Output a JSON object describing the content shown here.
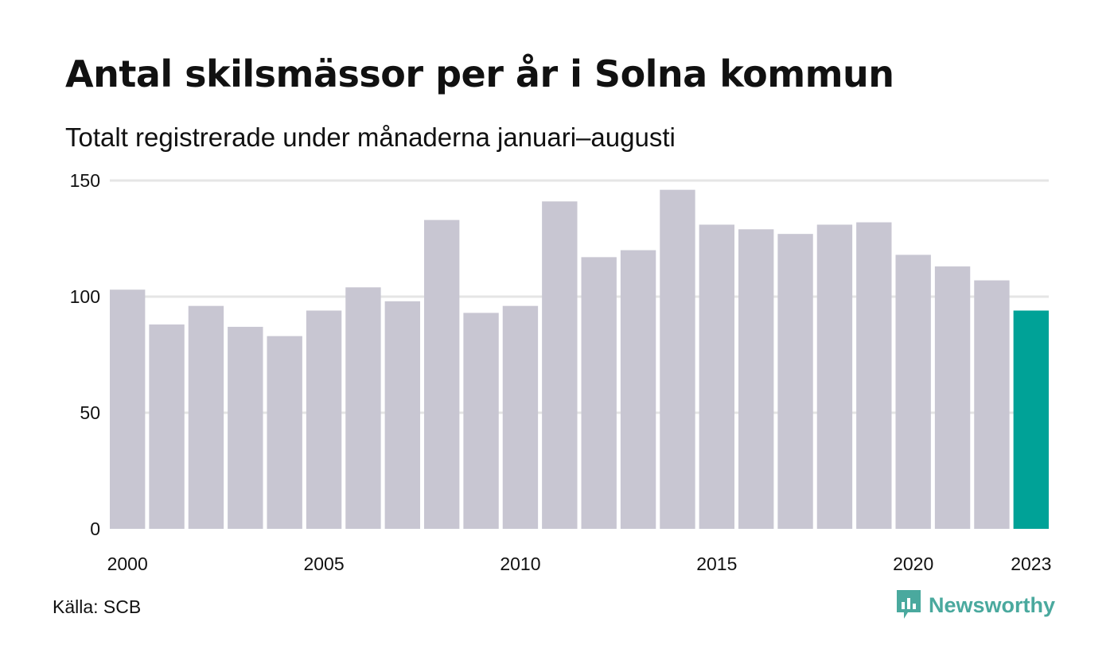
{
  "title": "Antal skilsmässor per år i Solna kommun",
  "subtitle": "Totalt registrerade under månaderna januari–augusti",
  "source": "Källa: SCB",
  "brand": {
    "name": "Newsworthy",
    "icon": "bar-chart-speech-icon",
    "color": "#4aa99e"
  },
  "colors": {
    "bar": "#c8c6d2",
    "highlight": "#00a297",
    "grid": "#e5e5e5",
    "text": "#111111"
  },
  "chart_data": {
    "type": "bar",
    "categories": [
      "2000",
      "2001",
      "2002",
      "2003",
      "2004",
      "2005",
      "2006",
      "2007",
      "2008",
      "2009",
      "2010",
      "2011",
      "2012",
      "2013",
      "2014",
      "2015",
      "2016",
      "2017",
      "2018",
      "2019",
      "2020",
      "2021",
      "2022",
      "2023"
    ],
    "values": [
      103,
      88,
      96,
      87,
      83,
      94,
      104,
      98,
      133,
      93,
      96,
      141,
      117,
      120,
      146,
      131,
      129,
      127,
      131,
      132,
      118,
      113,
      107,
      94
    ],
    "highlighted_category": "2023",
    "x_tick_labels": [
      "2000",
      "2005",
      "2010",
      "2015",
      "2020",
      "2023"
    ],
    "y_ticks": [
      0,
      50,
      100,
      150
    ],
    "ylim": [
      0,
      150
    ],
    "xlabel": "",
    "ylabel": "",
    "grid": true,
    "legend": "none"
  }
}
